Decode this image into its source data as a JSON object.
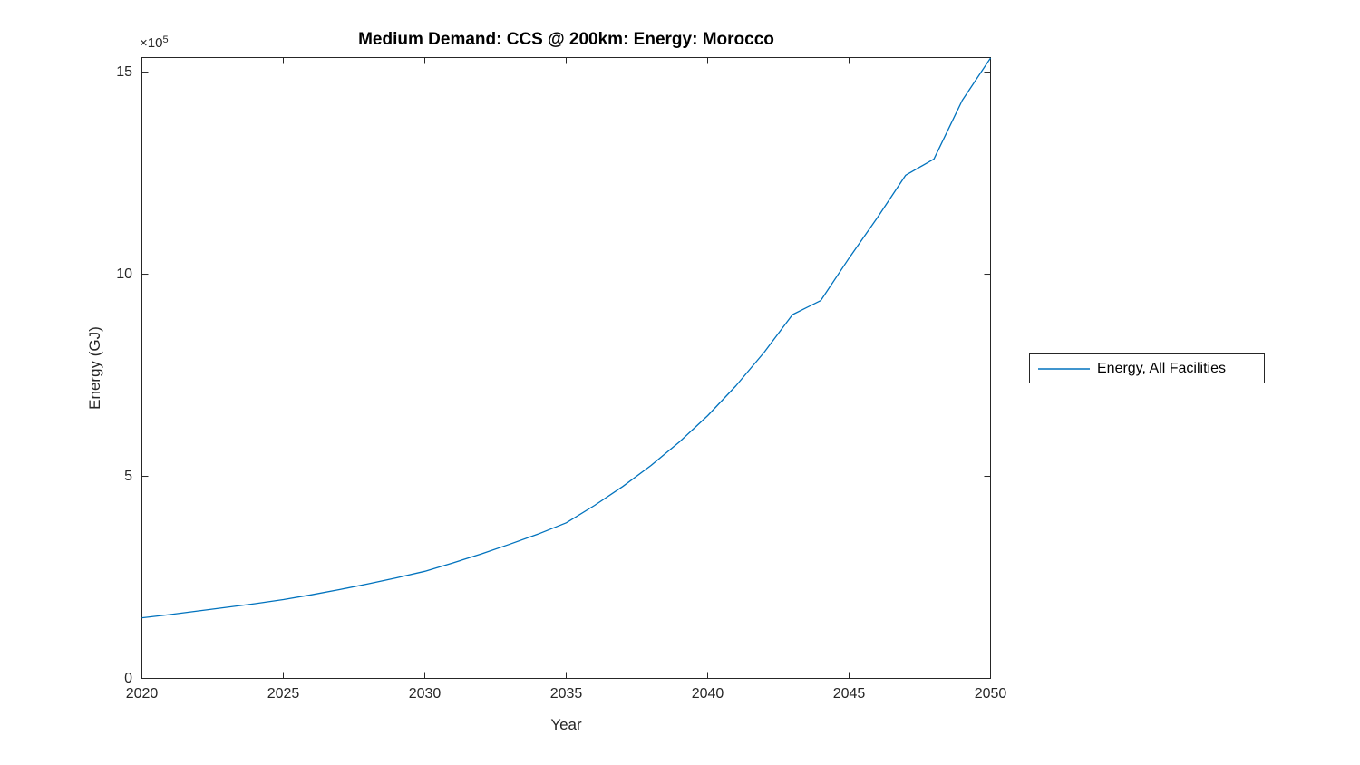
{
  "figure": {
    "background": "#ffffff",
    "axis_color": "#262626",
    "text_color": "#262626"
  },
  "chart_data": {
    "type": "line",
    "title": "Medium Demand: CCS @ 200km: Energy: Morocco",
    "xlabel": "Year",
    "ylabel": "Energy (GJ)",
    "y_multiplier": {
      "base": "×10",
      "exponent": "5"
    },
    "y_unit_scale": 100000,
    "xlim": [
      2020,
      2050
    ],
    "ylim_1e5": [
      0,
      15.36
    ],
    "x_ticks": [
      2020,
      2025,
      2030,
      2035,
      2040,
      2045,
      2050
    ],
    "y_ticks": [
      0,
      5,
      10,
      15
    ],
    "grid": false,
    "box": true,
    "tick_direction": "in",
    "legend_position": "outside-right",
    "x": [
      2020,
      2021,
      2022,
      2023,
      2024,
      2025,
      2026,
      2027,
      2028,
      2029,
      2030,
      2031,
      2032,
      2033,
      2034,
      2035,
      2036,
      2037,
      2038,
      2039,
      2040,
      2041,
      2042,
      2043,
      2044,
      2045,
      2046,
      2047,
      2048,
      2049,
      2050
    ],
    "series": [
      {
        "name": "Energy, All Facilities",
        "color": "#0072BD",
        "values_1e5_GJ": [
          1.5,
          1.58,
          1.67,
          1.76,
          1.85,
          1.95,
          2.07,
          2.2,
          2.34,
          2.49,
          2.65,
          2.86,
          3.08,
          3.32,
          3.57,
          3.85,
          4.28,
          4.75,
          5.27,
          5.85,
          6.5,
          7.24,
          8.07,
          9.0,
          9.35,
          10.4,
          11.4,
          12.45,
          12.85,
          14.3,
          15.35
        ]
      }
    ]
  },
  "legend": {
    "entries": [
      {
        "label": "Energy, All Facilities",
        "color": "#0072BD"
      }
    ]
  }
}
